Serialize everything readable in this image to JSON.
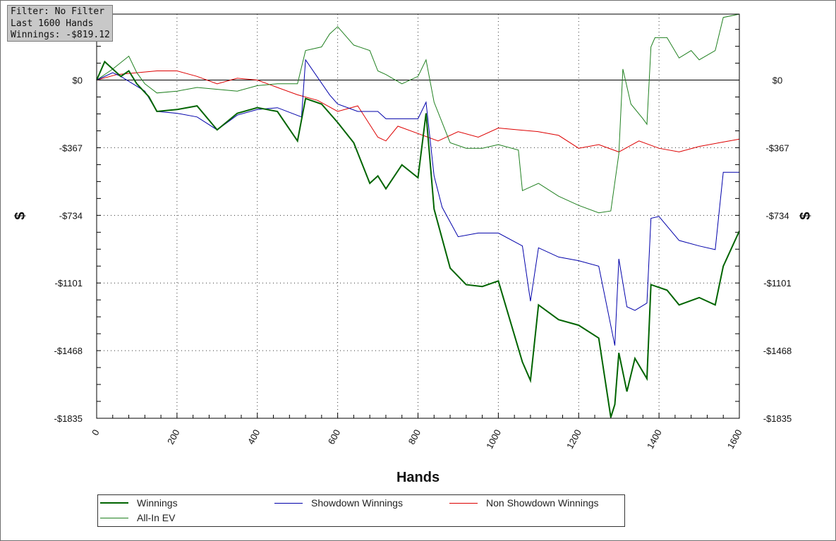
{
  "info": {
    "filter": "Filter: No Filter",
    "hands": "Last 1600 Hands",
    "winnings": "Winnings: -$819.12"
  },
  "chart_data": {
    "type": "line",
    "xlabel": "Hands",
    "ylabel": "$",
    "xlim": [
      0,
      1600
    ],
    "ylim": [
      -1835,
      358
    ],
    "x_ticks": [
      "0",
      "200",
      "400",
      "600",
      "800",
      "1000",
      "1200",
      "1400",
      "1600"
    ],
    "y_ticks": [
      {
        "value": 0,
        "label": "$0"
      },
      {
        "value": -367,
        "label": "-$367"
      },
      {
        "value": -734,
        "label": "-$734"
      },
      {
        "value": -1101,
        "label": "-$1101"
      },
      {
        "value": -1468,
        "label": "-$1468"
      },
      {
        "value": -1835,
        "label": "-$1835"
      }
    ],
    "grid": true,
    "legend_position": "bottom",
    "series": [
      {
        "name": "Winnings",
        "color": "#006400",
        "width": 2,
        "x": [
          0,
          20,
          40,
          60,
          80,
          100,
          130,
          150,
          200,
          250,
          300,
          350,
          400,
          450,
          500,
          520,
          560,
          600,
          640,
          680,
          700,
          720,
          760,
          800,
          820,
          840,
          880,
          920,
          960,
          1000,
          1060,
          1080,
          1100,
          1150,
          1200,
          1250,
          1280,
          1290,
          1300,
          1320,
          1340,
          1370,
          1380,
          1420,
          1450,
          1500,
          1540,
          1560,
          1600
        ],
        "y": [
          0,
          100,
          60,
          20,
          50,
          -20,
          -90,
          -170,
          -160,
          -140,
          -270,
          -180,
          -150,
          -170,
          -330,
          -100,
          -130,
          -230,
          -340,
          -560,
          -520,
          -590,
          -460,
          -530,
          -180,
          -700,
          -1020,
          -1110,
          -1120,
          -1090,
          -1530,
          -1630,
          -1220,
          -1300,
          -1330,
          -1400,
          -1830,
          -1760,
          -1480,
          -1690,
          -1510,
          -1620,
          -1110,
          -1140,
          -1220,
          -1180,
          -1220,
          -1010,
          -819
        ]
      },
      {
        "name": "Showdown Winnings",
        "color": "#0000aa",
        "width": 1,
        "x": [
          0,
          40,
          60,
          120,
          150,
          200,
          250,
          300,
          350,
          400,
          450,
          510,
          520,
          580,
          600,
          650,
          700,
          720,
          800,
          820,
          840,
          860,
          900,
          950,
          1000,
          1060,
          1080,
          1100,
          1150,
          1200,
          1250,
          1290,
          1300,
          1320,
          1340,
          1370,
          1380,
          1400,
          1450,
          1500,
          1540,
          1560,
          1600
        ],
        "y": [
          0,
          40,
          20,
          -60,
          -170,
          -180,
          -200,
          -270,
          -190,
          -160,
          -150,
          -200,
          110,
          -80,
          -130,
          -170,
          -170,
          -210,
          -210,
          -120,
          -520,
          -690,
          -850,
          -830,
          -830,
          -900,
          -1200,
          -910,
          -960,
          -980,
          -1010,
          -1440,
          -970,
          -1230,
          -1250,
          -1210,
          -750,
          -740,
          -870,
          -900,
          -920,
          -500,
          -500
        ]
      },
      {
        "name": "Non Showdown Winnings",
        "color": "#dd0000",
        "width": 1,
        "x": [
          0,
          50,
          100,
          150,
          200,
          250,
          300,
          350,
          400,
          450,
          500,
          550,
          600,
          650,
          700,
          720,
          750,
          800,
          850,
          900,
          950,
          1000,
          1050,
          1100,
          1150,
          1200,
          1250,
          1300,
          1350,
          1400,
          1450,
          1500,
          1550,
          1600
        ],
        "y": [
          0,
          30,
          40,
          50,
          50,
          20,
          -20,
          10,
          0,
          -40,
          -80,
          -110,
          -170,
          -140,
          -310,
          -330,
          -250,
          -290,
          -330,
          -280,
          -310,
          -260,
          -270,
          -280,
          -300,
          -370,
          -350,
          -390,
          -330,
          -370,
          -390,
          -360,
          -340,
          -320
        ]
      },
      {
        "name": "All-In EV",
        "color": "#208020",
        "width": 1,
        "x": [
          0,
          40,
          80,
          100,
          120,
          150,
          200,
          250,
          300,
          350,
          400,
          450,
          500,
          520,
          560,
          580,
          600,
          640,
          680,
          700,
          720,
          760,
          800,
          820,
          840,
          880,
          920,
          960,
          1000,
          1050,
          1060,
          1100,
          1150,
          1200,
          1250,
          1280,
          1300,
          1310,
          1330,
          1360,
          1370,
          1380,
          1390,
          1420,
          1450,
          1480,
          1500,
          1540,
          1560,
          1600
        ],
        "y": [
          0,
          60,
          130,
          40,
          -20,
          -70,
          -60,
          -40,
          -50,
          -60,
          -30,
          -20,
          -20,
          160,
          180,
          250,
          290,
          190,
          160,
          50,
          30,
          -20,
          20,
          110,
          -120,
          -340,
          -370,
          -370,
          -350,
          -380,
          -600,
          -560,
          -630,
          -680,
          -720,
          -710,
          -400,
          60,
          -130,
          -210,
          -240,
          180,
          230,
          230,
          120,
          160,
          110,
          160,
          340,
          358
        ]
      }
    ]
  }
}
